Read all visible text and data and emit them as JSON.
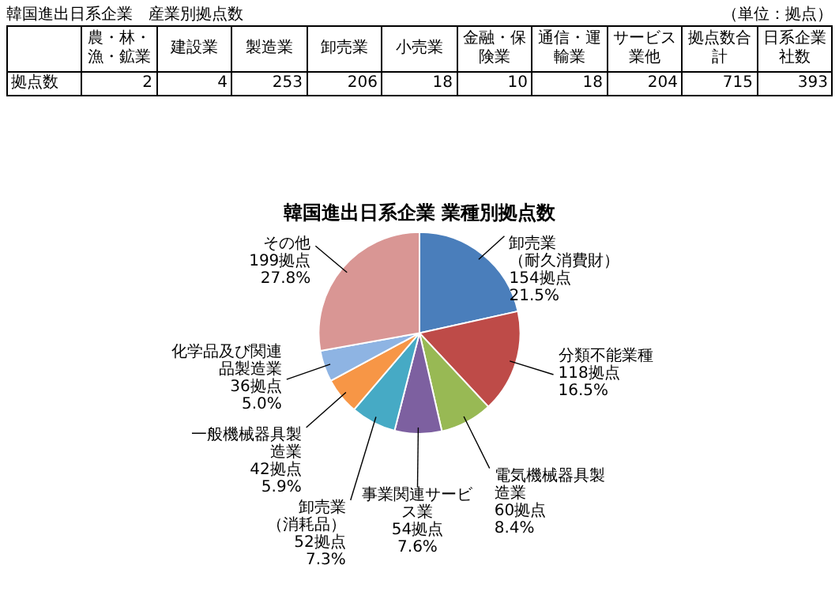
{
  "chart_data": [
    {
      "type": "other",
      "title": "韓国進出日系企業　産業別拠点数",
      "subtitle": "（単位：拠点）",
      "ylabel": "拠点数",
      "categories": [
        "農・林・漁・鉱業",
        "建設業",
        "製造業",
        "卸売業",
        "小売業",
        "金融・保険業",
        "通信・運輸業",
        "サービス業他",
        "拠点数合計",
        "日系企業社数"
      ],
      "values": [
        2,
        4,
        253,
        206,
        18,
        10,
        18,
        204,
        715,
        393
      ],
      "data_labels": true
    },
    {
      "type": "pie",
      "title": "韓国進出日系企業 業種別拠点数",
      "categories": [
        "卸売業（耐久消費財）",
        "分類不能業種",
        "電気機械器具製造業",
        "事業関連サービス業",
        "卸売業（消耗品）",
        "一般機械器具製造業",
        "化学品及び関連品製造業",
        "その他"
      ],
      "values": [
        154,
        118,
        60,
        54,
        52,
        42,
        36,
        199
      ],
      "colors": [
        "#4a7ebb",
        "#be4b48",
        "#98b954",
        "#7d60a0",
        "#46aac5",
        "#f79646",
        "#8eb4e3",
        "#d99694"
      ],
      "value_labels": [
        "154拠点\n21.5%",
        "118拠点\n16.5%",
        "60拠点\n8.4%",
        "54拠点\n7.6%",
        "52拠点\n7.3%",
        "42拠点\n5.9%",
        "36拠点\n5.0%",
        "199拠点\n27.8%"
      ]
    }
  ]
}
